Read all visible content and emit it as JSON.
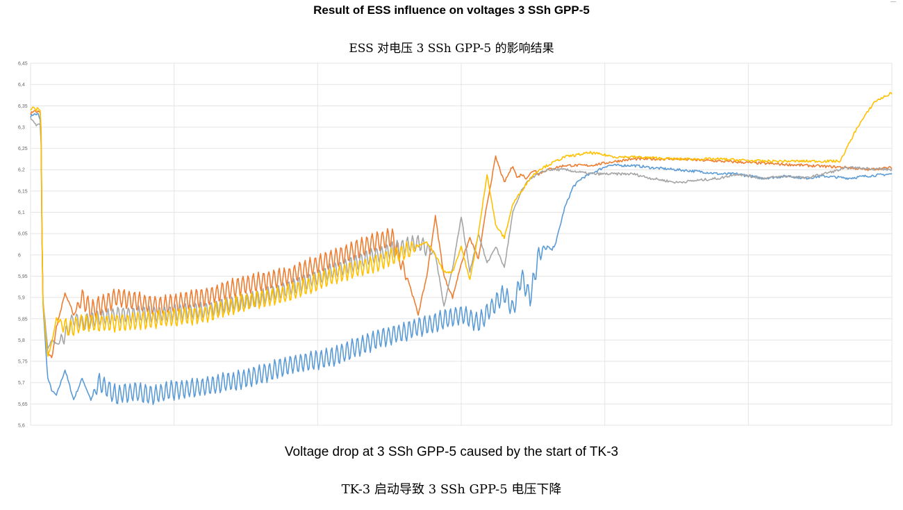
{
  "title": "Result of ESS influence on voltages 3 SSh GPP-5",
  "title_cn": "ESS 对电压 3 SSh GPP-5 的影响结果",
  "caption": "Voltage drop at 3 SSh GPP-5 caused by the start of TK-3",
  "caption_cn": "TK-3 启动导致 3 SSh GPP-5 电压下降",
  "chart_data": {
    "type": "line",
    "title": "",
    "xlabel": "",
    "ylabel": "",
    "ylim": [
      5.6,
      6.45
    ],
    "yticks": [
      "6,45",
      "6,4",
      "6,35",
      "6,3",
      "6,25",
      "6,2",
      "6,15",
      "6,1",
      "6,05",
      "6",
      "5,95",
      "5,9",
      "5,85",
      "5,8",
      "5,75",
      "5,7",
      "5,65",
      "5,6"
    ],
    "xlim": [
      0,
      1
    ],
    "grid": true,
    "legend": "none",
    "x_gridlines": [
      0.0,
      0.1667,
      0.3333,
      0.5,
      0.6667,
      0.8333,
      1.0
    ],
    "series": [
      {
        "color": "#5B9BD5",
        "x": [
          0,
          0.003,
          0.006,
          0.009,
          0.012,
          0.014,
          0.017,
          0.02,
          0.025,
          0.03,
          0.04,
          0.05,
          0.06,
          0.07,
          0.08,
          0.1,
          0.12,
          0.14,
          0.16,
          0.2,
          0.25,
          0.3,
          0.35,
          0.4,
          0.45,
          0.5,
          0.52,
          0.55,
          0.56,
          0.57,
          0.58,
          0.59,
          0.6,
          0.605,
          0.61,
          0.615,
          0.62,
          0.63,
          0.64,
          0.65,
          0.66,
          0.67,
          0.68,
          0.7,
          0.72,
          0.75,
          0.78,
          0.8,
          0.82,
          0.85,
          0.88,
          0.9,
          0.92,
          0.95,
          0.97,
          1.0
        ],
        "y": [
          6.325,
          6.33,
          6.33,
          6.33,
          6.31,
          5.9,
          5.8,
          5.71,
          5.68,
          5.67,
          5.73,
          5.66,
          5.71,
          5.66,
          5.7,
          5.67,
          5.68,
          5.67,
          5.68,
          5.69,
          5.71,
          5.74,
          5.76,
          5.8,
          5.83,
          5.86,
          5.84,
          5.91,
          5.87,
          5.95,
          5.9,
          6.0,
          6.02,
          6.01,
          6.03,
          6.07,
          6.11,
          6.16,
          6.18,
          6.19,
          6.2,
          6.21,
          6.21,
          6.21,
          6.205,
          6.2,
          6.195,
          6.19,
          6.19,
          6.18,
          6.185,
          6.18,
          6.185,
          6.18,
          6.185,
          6.19
        ],
        "osc_start": 0.07,
        "osc_end": 0.6,
        "osc_amp": 0.022,
        "osc_period": 0.006
      },
      {
        "color": "#ED7D31",
        "x": [
          0,
          0.003,
          0.006,
          0.009,
          0.012,
          0.014,
          0.017,
          0.02,
          0.025,
          0.03,
          0.04,
          0.05,
          0.06,
          0.07,
          0.1,
          0.15,
          0.2,
          0.25,
          0.3,
          0.35,
          0.4,
          0.42,
          0.44,
          0.45,
          0.46,
          0.47,
          0.48,
          0.49,
          0.5,
          0.51,
          0.52,
          0.53,
          0.54,
          0.55,
          0.56,
          0.565,
          0.57,
          0.575,
          0.58,
          0.585,
          0.59,
          0.6,
          0.61,
          0.62,
          0.63,
          0.65,
          0.68,
          0.7,
          0.75,
          0.8,
          0.85,
          0.9,
          0.95,
          0.97,
          1.0
        ],
        "y": [
          6.33,
          6.34,
          6.335,
          6.34,
          6.335,
          5.9,
          5.83,
          5.77,
          5.76,
          5.83,
          5.91,
          5.86,
          5.9,
          5.87,
          5.9,
          5.88,
          5.9,
          5.93,
          5.95,
          5.99,
          6.03,
          6.04,
          5.93,
          5.86,
          5.95,
          6.09,
          5.95,
          5.9,
          5.98,
          6.04,
          5.99,
          6.12,
          6.23,
          6.17,
          6.21,
          6.18,
          6.19,
          6.18,
          6.19,
          6.2,
          6.19,
          6.2,
          6.205,
          6.21,
          6.21,
          6.21,
          6.22,
          6.225,
          6.225,
          6.22,
          6.215,
          6.21,
          6.205,
          6.2,
          6.205
        ],
        "osc_start": 0.05,
        "osc_end": 0.44,
        "osc_amp": 0.022,
        "osc_period": 0.006
      },
      {
        "color": "#A5A5A5",
        "x": [
          0,
          0.003,
          0.006,
          0.009,
          0.012,
          0.014,
          0.017,
          0.02,
          0.025,
          0.03,
          0.04,
          0.05,
          0.06,
          0.1,
          0.15,
          0.2,
          0.25,
          0.3,
          0.35,
          0.4,
          0.45,
          0.47,
          0.48,
          0.49,
          0.5,
          0.51,
          0.52,
          0.53,
          0.54,
          0.55,
          0.56,
          0.57,
          0.58,
          0.59,
          0.6,
          0.62,
          0.65,
          0.68,
          0.7,
          0.72,
          0.75,
          0.8,
          0.82,
          0.85,
          0.88,
          0.9,
          0.93,
          0.95,
          1.0
        ],
        "y": [
          6.32,
          6.315,
          6.305,
          6.31,
          6.305,
          5.9,
          5.84,
          5.78,
          5.8,
          5.79,
          5.81,
          5.85,
          5.84,
          5.86,
          5.86,
          5.87,
          5.89,
          5.92,
          5.96,
          6.0,
          6.03,
          6.0,
          5.88,
          5.97,
          6.09,
          5.96,
          6.05,
          5.98,
          6.02,
          5.97,
          6.1,
          6.15,
          6.18,
          6.19,
          6.2,
          6.2,
          6.19,
          6.19,
          6.19,
          6.18,
          6.17,
          6.18,
          6.19,
          6.18,
          6.185,
          6.18,
          6.195,
          6.205,
          6.2
        ],
        "osc_start": 0.03,
        "osc_end": 0.47,
        "osc_amp": 0.018,
        "osc_period": 0.006
      },
      {
        "color": "#FFC000",
        "x": [
          0,
          0.003,
          0.006,
          0.009,
          0.012,
          0.014,
          0.017,
          0.02,
          0.025,
          0.03,
          0.04,
          0.05,
          0.06,
          0.1,
          0.15,
          0.2,
          0.25,
          0.3,
          0.35,
          0.4,
          0.45,
          0.46,
          0.47,
          0.48,
          0.49,
          0.5,
          0.51,
          0.52,
          0.53,
          0.54,
          0.55,
          0.56,
          0.57,
          0.58,
          0.59,
          0.6,
          0.62,
          0.65,
          0.68,
          0.7,
          0.75,
          0.8,
          0.85,
          0.9,
          0.93,
          0.94,
          0.95,
          0.96,
          0.97,
          0.98,
          1.0
        ],
        "y": [
          6.34,
          6.345,
          6.34,
          6.345,
          6.34,
          5.9,
          5.82,
          5.76,
          5.8,
          5.85,
          5.83,
          5.83,
          5.84,
          5.84,
          5.85,
          5.86,
          5.89,
          5.91,
          5.95,
          5.98,
          6.02,
          6.03,
          6.0,
          5.96,
          5.96,
          6.02,
          5.94,
          6.05,
          6.19,
          6.07,
          6.04,
          6.12,
          6.15,
          6.18,
          6.2,
          6.21,
          6.23,
          6.24,
          6.23,
          6.23,
          6.225,
          6.225,
          6.22,
          6.22,
          6.22,
          6.22,
          6.26,
          6.3,
          6.33,
          6.36,
          6.38
        ],
        "osc_start": 0.03,
        "osc_end": 0.45,
        "osc_amp": 0.02,
        "osc_period": 0.006
      }
    ]
  }
}
